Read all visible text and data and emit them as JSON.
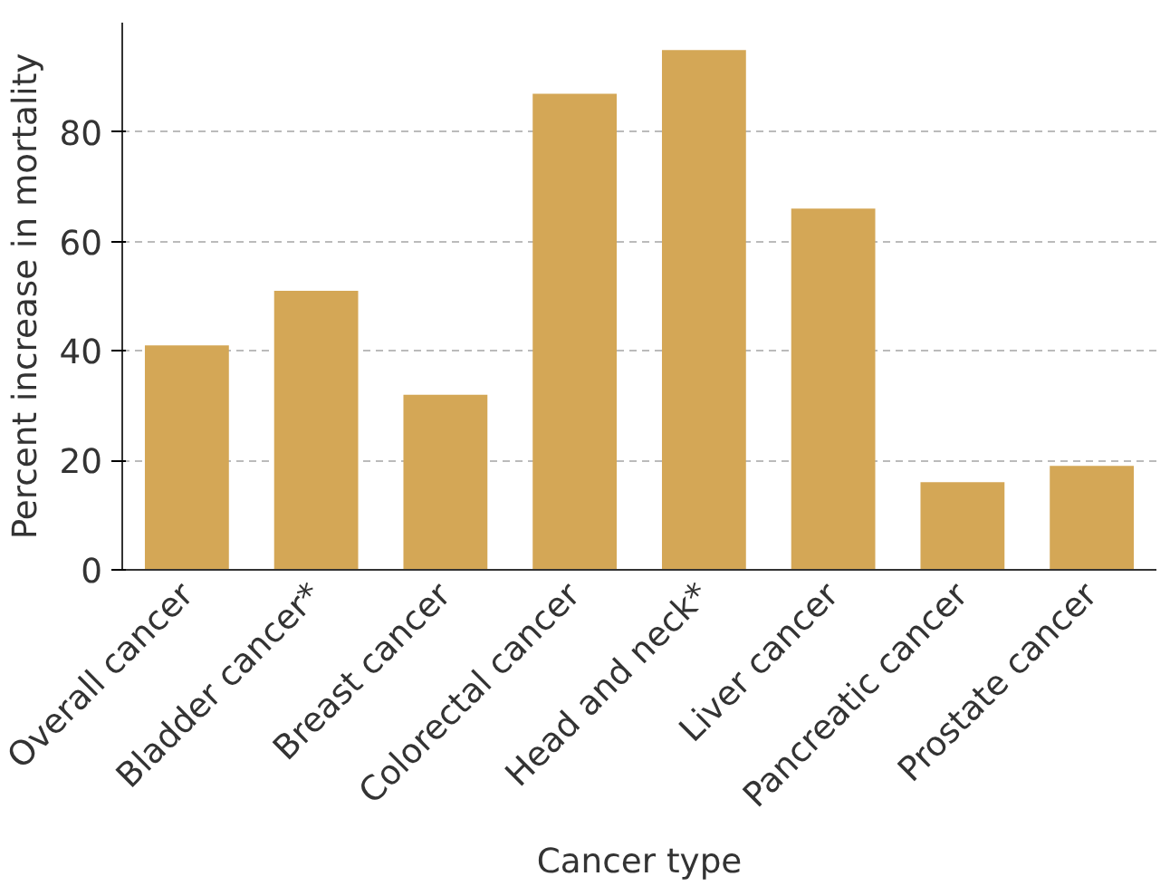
{
  "chart_data": {
    "type": "bar",
    "xlabel": "Cancer type",
    "ylabel": "Percent increase in mortality",
    "categories": [
      "Overall cancer",
      "Bladder cancer*",
      "Breast cancer",
      "Colorectal cancer",
      "Head and neck*",
      "Liver cancer",
      "Pancreatic cancer",
      "Prostate cancer"
    ],
    "values": [
      41,
      51,
      32,
      87,
      95,
      66,
      16,
      19
    ],
    "color": "#d4a756",
    "ylim": [
      0,
      100
    ],
    "yticks": [
      0,
      20,
      40,
      60,
      80
    ],
    "grid": "y"
  }
}
